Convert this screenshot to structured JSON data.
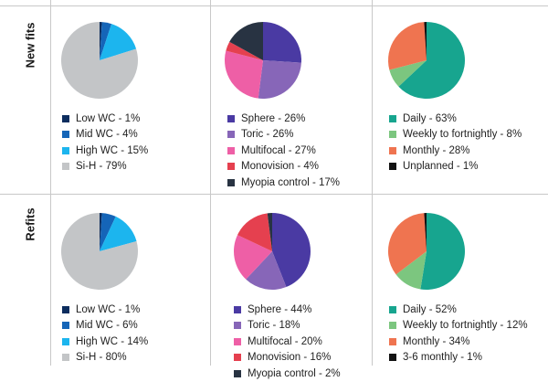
{
  "row_labels": [
    "New fits",
    "Refits"
  ],
  "chart_data": [
    {
      "type": "pie",
      "row": "New fits",
      "slices": [
        {
          "label": "Low WC - 1%",
          "value": 1,
          "color": "#0c2d5e"
        },
        {
          "label": "Mid WC - 4%",
          "value": 4,
          "color": "#1565b8"
        },
        {
          "label": "High WC - 15%",
          "value": 15,
          "color": "#1cb5ee"
        },
        {
          "label": "Si-H - 79%",
          "value": 79,
          "color": "#c3c5c7"
        }
      ]
    },
    {
      "type": "pie",
      "row": "New fits",
      "slices": [
        {
          "label": "Sphere - 26%",
          "value": 26,
          "color": "#4a3aa3"
        },
        {
          "label": "Toric - 26%",
          "value": 26,
          "color": "#8766b8"
        },
        {
          "label": "Multifocal - 27%",
          "value": 27,
          "color": "#ee5fa6"
        },
        {
          "label": "Monovision - 4%",
          "value": 4,
          "color": "#e5404f"
        },
        {
          "label": "Myopia control - 17%",
          "value": 17,
          "color": "#283342"
        }
      ]
    },
    {
      "type": "pie",
      "row": "New fits",
      "slices": [
        {
          "label": "Daily - 63%",
          "value": 63,
          "color": "#17a58f"
        },
        {
          "label": "Weekly to fortnightly - 8%",
          "value": 8,
          "color": "#7cc67f"
        },
        {
          "label": "Monthly - 28%",
          "value": 28,
          "color": "#ef7450"
        },
        {
          "label": "Unplanned - 1%",
          "value": 1,
          "color": "#121212"
        }
      ]
    },
    {
      "type": "pie",
      "row": "Refits",
      "slices": [
        {
          "label": "Low WC - 1%",
          "value": 1,
          "color": "#0c2d5e"
        },
        {
          "label": "Mid WC - 6%",
          "value": 6,
          "color": "#1565b8"
        },
        {
          "label": "High WC - 14%",
          "value": 14,
          "color": "#1cb5ee"
        },
        {
          "label": "Si-H - 80%",
          "value": 80,
          "color": "#c3c5c7"
        }
      ]
    },
    {
      "type": "pie",
      "row": "Refits",
      "slices": [
        {
          "label": "Sphere - 44%",
          "value": 44,
          "color": "#4a3aa3"
        },
        {
          "label": "Toric - 18%",
          "value": 18,
          "color": "#8766b8"
        },
        {
          "label": "Multifocal - 20%",
          "value": 20,
          "color": "#ee5fa6"
        },
        {
          "label": "Monovision - 16%",
          "value": 16,
          "color": "#e5404f"
        },
        {
          "label": "Myopia control - 2%",
          "value": 2,
          "color": "#283342"
        }
      ]
    },
    {
      "type": "pie",
      "row": "Refits",
      "slices": [
        {
          "label": "Daily - 52%",
          "value": 52,
          "color": "#17a58f"
        },
        {
          "label": "Weekly to fortnightly - 12%",
          "value": 12,
          "color": "#7cc67f"
        },
        {
          "label": "Monthly - 34%",
          "value": 34,
          "color": "#ef7450"
        },
        {
          "label": "3-6 monthly - 1%",
          "value": 1,
          "color": "#121212"
        }
      ]
    }
  ]
}
